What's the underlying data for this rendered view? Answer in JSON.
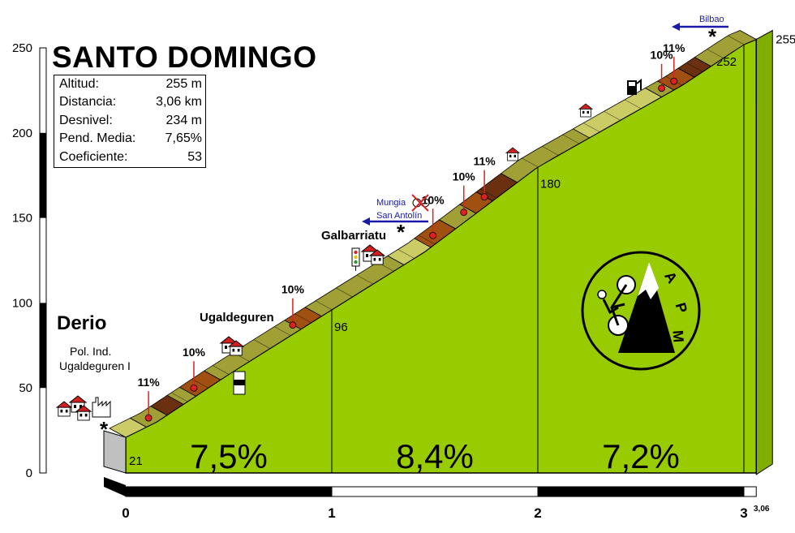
{
  "title": "SANTO DOMINGO",
  "stats": [
    {
      "label": "Altitud:",
      "value": "255 m"
    },
    {
      "label": "Distancia:",
      "value": "3,06 km"
    },
    {
      "label": "Desnivel:",
      "value": "234 m"
    },
    {
      "label": "Pend. Media:",
      "value": "7,65%"
    },
    {
      "label": "Coeficiente:",
      "value": "53"
    }
  ],
  "places": {
    "start": "Derio",
    "industrial_line1": "Pol. Ind.",
    "industrial_line2": "Ugaldeguren I",
    "village1": "Ugaldeguren",
    "village2": "Galbarriatu"
  },
  "signs": {
    "mungia": "Mungia",
    "san_antolin": "San Antolín",
    "bilbao": "Bilbao"
  },
  "logo_text": "APM",
  "colors": {
    "profile_fill": "#99cc00",
    "road_easy": "#cccc66",
    "road_medium": "#a0a036",
    "road_hard": "#a05010",
    "road_steep": "#6b3010",
    "base_grey": "#c0c0c0",
    "marker": "#e02020"
  },
  "chart_data": {
    "type": "area",
    "x_unit": "km",
    "y_unit": "m",
    "xlim": [
      0,
      3.06
    ],
    "ylim": [
      0,
      250
    ],
    "x_ticks": [
      "0",
      "1",
      "2",
      "3"
    ],
    "x_end_label": "3,06",
    "y_ticks": [
      "0",
      "50",
      "100",
      "150",
      "200",
      "250"
    ],
    "elevation_profile": [
      {
        "x": 0,
        "y": 21
      },
      {
        "x": 0.15,
        "y": 30
      },
      {
        "x": 0.5,
        "y": 58
      },
      {
        "x": 1.0,
        "y": 96
      },
      {
        "x": 1.45,
        "y": 130
      },
      {
        "x": 2.0,
        "y": 180
      },
      {
        "x": 2.7,
        "y": 228
      },
      {
        "x": 3.0,
        "y": 252
      },
      {
        "x": 3.06,
        "y": 255
      }
    ],
    "segments": [
      {
        "from": 0,
        "to": 1,
        "gradient": "7,5%"
      },
      {
        "from": 1,
        "to": 2,
        "gradient": "8,4%"
      },
      {
        "from": 2,
        "to": 3,
        "gradient": "7,2%"
      }
    ],
    "altitude_labels": [
      {
        "x": 0,
        "y": 21,
        "text": "21"
      },
      {
        "x": 1,
        "y": 96,
        "text": "96"
      },
      {
        "x": 2,
        "y": 180,
        "text": "180"
      },
      {
        "x": 3,
        "y": 252,
        "text": "252"
      },
      {
        "x": 3.06,
        "y": 255,
        "text": "255"
      }
    ],
    "steep_markers": [
      {
        "x": 0.15,
        "text": "11%"
      },
      {
        "x": 0.37,
        "text": "10%"
      },
      {
        "x": 0.85,
        "text": "10%"
      },
      {
        "x": 1.53,
        "text": "10%"
      },
      {
        "x": 1.68,
        "text": "10%"
      },
      {
        "x": 1.78,
        "text": "11%"
      },
      {
        "x": 2.64,
        "text": "10%"
      },
      {
        "x": 2.7,
        "text": "11%"
      }
    ],
    "road_bands": [
      {
        "from": 0,
        "to": 0.1,
        "level": "easy"
      },
      {
        "from": 0.1,
        "to": 0.2,
        "level": "medium"
      },
      {
        "from": 0.2,
        "to": 0.28,
        "level": "steep"
      },
      {
        "from": 0.28,
        "to": 0.34,
        "level": "medium"
      },
      {
        "from": 0.34,
        "to": 0.46,
        "level": "hard"
      },
      {
        "from": 0.46,
        "to": 0.85,
        "level": "medium"
      },
      {
        "from": 0.85,
        "to": 0.95,
        "level": "hard"
      },
      {
        "from": 0.95,
        "to": 1.35,
        "level": "medium"
      },
      {
        "from": 1.35,
        "to": 1.48,
        "level": "easy"
      },
      {
        "from": 1.48,
        "to": 1.6,
        "level": "hard"
      },
      {
        "from": 1.6,
        "to": 1.7,
        "level": "medium"
      },
      {
        "from": 1.7,
        "to": 1.78,
        "level": "hard"
      },
      {
        "from": 1.78,
        "to": 1.9,
        "level": "steep"
      },
      {
        "from": 1.9,
        "to": 2.25,
        "level": "medium"
      },
      {
        "from": 2.25,
        "to": 2.6,
        "level": "easy"
      },
      {
        "from": 2.6,
        "to": 2.66,
        "level": "medium"
      },
      {
        "from": 2.66,
        "to": 2.76,
        "level": "hard"
      },
      {
        "from": 2.76,
        "to": 2.84,
        "level": "steep"
      },
      {
        "from": 2.84,
        "to": 3.06,
        "level": "medium"
      }
    ]
  }
}
